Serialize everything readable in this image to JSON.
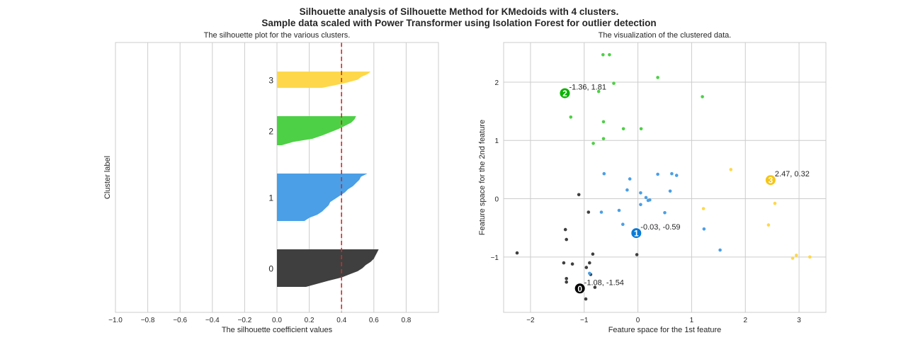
{
  "suptitle_line1": "Silhouette analysis of Silhouette Method for KMedoids with 4 clusters.",
  "suptitle_line2": "Sample data scaled with Power Transformer using Isolation Forest for outlier detection",
  "colors": {
    "cluster_0": "#3f3f3f",
    "cluster_1": "#4a9fe6",
    "cluster_2": "#4dd045",
    "cluster_3": "#fed84a",
    "center_0": "#000000",
    "center_1": "#0a7ad6",
    "center_2": "#0bb300",
    "center_3": "#f5c518",
    "avg_line": "#d62728",
    "grid": "#cccccc",
    "spine": "#cccccc"
  },
  "chart_data": [
    {
      "type": "area",
      "title": "The silhouette plot for the various clusters.",
      "xlabel": "The silhouette coefficient values",
      "ylabel": "Cluster label",
      "xlim": [
        -1.0,
        1.0
      ],
      "xticks": [
        -1.0,
        -0.8,
        -0.6,
        -0.4,
        -0.2,
        0.0,
        0.2,
        0.4,
        0.6,
        0.8
      ],
      "xtick_labels": [
        "−1.0",
        "−0.8",
        "−0.6",
        "−0.4",
        "−0.2",
        "0.0",
        "0.2",
        "0.4",
        "0.6",
        "0.8"
      ],
      "grid": "vertical",
      "average_silhouette": 0.4,
      "clusters": [
        {
          "label": "0",
          "silhouette_profile": [
            0.63,
            0.62,
            0.61,
            0.6,
            0.58,
            0.55,
            0.53,
            0.5,
            0.45,
            0.4,
            0.32,
            0.25,
            0.18
          ]
        },
        {
          "label": "1",
          "silhouette_profile": [
            0.56,
            0.52,
            0.51,
            0.49,
            0.47,
            0.44,
            0.42,
            0.39,
            0.36,
            0.33,
            0.32,
            0.3,
            0.28,
            0.25,
            0.2,
            0.17
          ]
        },
        {
          "label": "2",
          "silhouette_profile": [
            0.49,
            0.48,
            0.46,
            0.42,
            0.38,
            0.33,
            0.28,
            0.22,
            0.1,
            0.03
          ]
        },
        {
          "label": "3",
          "silhouette_profile": [
            0.58,
            0.56,
            0.52,
            0.5,
            0.44,
            0.36,
            0.28
          ]
        }
      ]
    },
    {
      "type": "scatter",
      "title": "The visualization of the clustered data.",
      "xlabel": "Feature space for the 1st feature",
      "ylabel": "Feature space for the 2nd feature",
      "xlim": [
        -2.5,
        3.5
      ],
      "ylim": [
        -1.95,
        2.68
      ],
      "xticks": [
        -2,
        -1,
        0,
        1,
        2,
        3
      ],
      "xtick_labels": [
        "−2",
        "−1",
        "0",
        "1",
        "2",
        "3"
      ],
      "yticks": [
        -1,
        0,
        1,
        2
      ],
      "ytick_labels": [
        "−1",
        "0",
        "1",
        "2"
      ],
      "grid": "both",
      "series": [
        {
          "cluster": 0,
          "points": [
            [
              -2.25,
              -0.93
            ],
            [
              -1.35,
              -0.53
            ],
            [
              -1.33,
              -0.7
            ],
            [
              -1.1,
              0.07
            ],
            [
              -0.92,
              -0.23
            ],
            [
              -0.84,
              -0.95
            ],
            [
              -1.38,
              -1.1
            ],
            [
              -1.22,
              -1.12
            ],
            [
              -0.9,
              -1.1
            ],
            [
              -0.96,
              -1.18
            ],
            [
              -1.33,
              -1.37
            ],
            [
              -1.33,
              -1.43
            ],
            [
              -0.88,
              -1.3
            ],
            [
              -0.8,
              -1.52
            ],
            [
              -0.97,
              -1.72
            ],
            [
              -0.02,
              -0.96
            ]
          ]
        },
        {
          "cluster": 1,
          "points": [
            [
              -0.63,
              0.43
            ],
            [
              -0.15,
              0.34
            ],
            [
              -0.2,
              0.15
            ],
            [
              0.05,
              0.1
            ],
            [
              0.15,
              0.02
            ],
            [
              0.22,
              -0.02
            ],
            [
              0.19,
              -0.03
            ],
            [
              0.05,
              -0.1
            ],
            [
              0.37,
              0.42
            ],
            [
              0.63,
              0.43
            ],
            [
              0.72,
              0.4
            ],
            [
              0.6,
              0.13
            ],
            [
              -0.68,
              -0.23
            ],
            [
              -0.35,
              -0.2
            ],
            [
              0.5,
              -0.24
            ],
            [
              -0.28,
              -0.44
            ],
            [
              -0.9,
              -1.28
            ],
            [
              1.23,
              -0.52
            ],
            [
              1.53,
              -0.88
            ]
          ]
        },
        {
          "cluster": 2,
          "points": [
            [
              -0.65,
              2.47
            ],
            [
              -0.53,
              2.47
            ],
            [
              -0.45,
              1.98
            ],
            [
              0.37,
              2.08
            ],
            [
              -0.73,
              1.84
            ],
            [
              1.2,
              1.75
            ],
            [
              -1.25,
              1.4
            ],
            [
              -0.64,
              1.32
            ],
            [
              -0.27,
              1.2
            ],
            [
              0.06,
              1.2
            ],
            [
              -0.64,
              1.03
            ],
            [
              -0.83,
              0.95
            ]
          ]
        },
        {
          "cluster": 3,
          "points": [
            [
              1.73,
              0.5
            ],
            [
              1.22,
              -0.17
            ],
            [
              2.55,
              -0.08
            ],
            [
              2.43,
              -0.45
            ],
            [
              2.95,
              -0.97
            ],
            [
              3.2,
              -1.0
            ],
            [
              2.88,
              -1.02
            ]
          ]
        }
      ],
      "centers": [
        {
          "id": "0",
          "x": -1.08,
          "y": -1.54,
          "label": "-1.08, -1.54"
        },
        {
          "id": "1",
          "x": -0.03,
          "y": -0.59,
          "label": "-0.03, -0.59"
        },
        {
          "id": "2",
          "x": -1.36,
          "y": 1.81,
          "label": "-1.36, 1.81"
        },
        {
          "id": "3",
          "x": 2.47,
          "y": 0.32,
          "label": "2.47, 0.32"
        }
      ]
    }
  ]
}
